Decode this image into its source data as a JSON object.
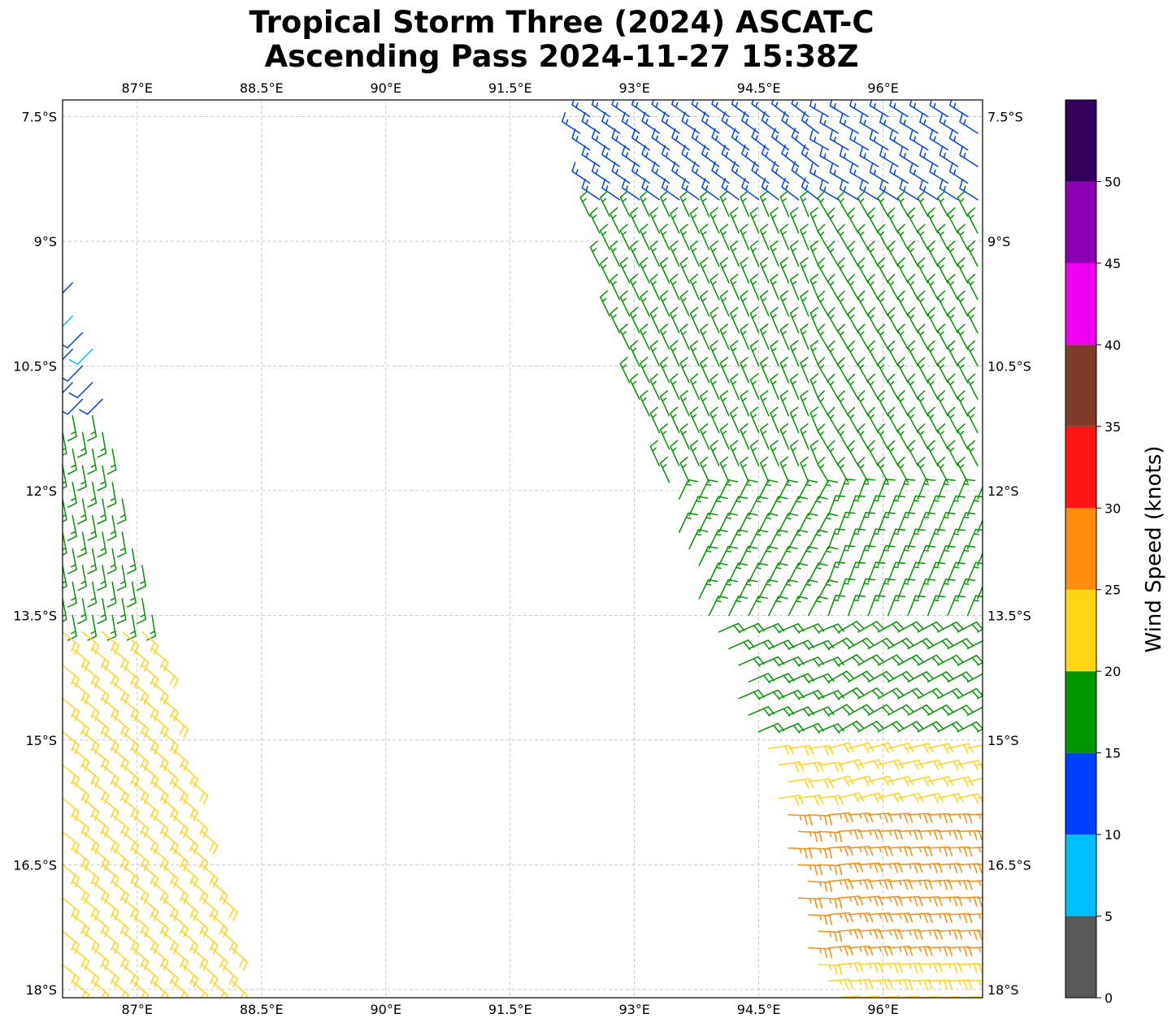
{
  "title": {
    "line1": "Tropical Storm Three (2024) ASCAT-C",
    "line2": "Ascending Pass 2024-11-27 15:38Z"
  },
  "map": {
    "lon_range": [
      86.1,
      97.2
    ],
    "lat_range": [
      -18.1,
      -7.3
    ],
    "gridlines": true,
    "lon_ticks": [
      {
        "value": 87.0,
        "label": "87°E"
      },
      {
        "value": 88.5,
        "label": "88.5°E"
      },
      {
        "value": 90.0,
        "label": "90°E"
      },
      {
        "value": 91.5,
        "label": "91.5°E"
      },
      {
        "value": 93.0,
        "label": "93°E"
      },
      {
        "value": 94.5,
        "label": "94.5°E"
      },
      {
        "value": 96.0,
        "label": "96°E"
      }
    ],
    "lat_ticks": [
      {
        "value": -7.5,
        "label": "7.5°S"
      },
      {
        "value": -9.0,
        "label": "9°S"
      },
      {
        "value": -10.5,
        "label": "10.5°S"
      },
      {
        "value": -12.0,
        "label": "12°S"
      },
      {
        "value": -13.5,
        "label": "13.5°S"
      },
      {
        "value": -15.0,
        "label": "15°S"
      },
      {
        "value": -16.5,
        "label": "16.5°S"
      },
      {
        "value": -18.0,
        "label": "18°S"
      }
    ]
  },
  "colorbar": {
    "label": "Wind Speed (knots)",
    "range": [
      0,
      55
    ],
    "bins": [
      {
        "from": 0,
        "to": 5,
        "color": "#595959"
      },
      {
        "from": 5,
        "to": 10,
        "color": "#00bfff"
      },
      {
        "from": 10,
        "to": 15,
        "color": "#0040ff"
      },
      {
        "from": 15,
        "to": 20,
        "color": "#009600"
      },
      {
        "from": 20,
        "to": 25,
        "color": "#ffd514"
      },
      {
        "from": 25,
        "to": 30,
        "color": "#ff8c0a"
      },
      {
        "from": 30,
        "to": 35,
        "color": "#ff1414"
      },
      {
        "from": 35,
        "to": 40,
        "color": "#7f3c28"
      },
      {
        "from": 40,
        "to": 45,
        "color": "#f000f0"
      },
      {
        "from": 45,
        "to": 50,
        "color": "#8c00b4"
      },
      {
        "from": 50,
        "to": 55,
        "color": "#32005a"
      }
    ],
    "ticks": [
      {
        "value": 0,
        "label": "0"
      },
      {
        "value": 5,
        "label": "5"
      },
      {
        "value": 10,
        "label": "10"
      },
      {
        "value": 15,
        "label": "15"
      },
      {
        "value": 20,
        "label": "20"
      },
      {
        "value": 25,
        "label": "25"
      },
      {
        "value": 30,
        "label": "30"
      },
      {
        "value": 35,
        "label": "35"
      },
      {
        "value": 40,
        "label": "40"
      },
      {
        "value": 45,
        "label": "45"
      },
      {
        "value": 50,
        "label": "50"
      }
    ]
  },
  "swaths": [
    {
      "name": "west-swath",
      "clip": [
        [
          86.1,
          -9.0
        ],
        [
          86.5,
          -10.3
        ],
        [
          86.7,
          -11.3
        ],
        [
          87.2,
          -13.5
        ],
        [
          87.5,
          -14.8
        ],
        [
          88.0,
          -16.8
        ],
        [
          88.3,
          -18.1
        ],
        [
          86.1,
          -18.1
        ]
      ],
      "wind_zones": [
        {
          "lat_max": -7.3,
          "lat_min": -10.9,
          "direction_deg": 230,
          "speed": 12,
          "speed_alt": 8,
          "color": "#0040ff"
        },
        {
          "lat_max": -10.9,
          "lat_min": -13.6,
          "direction_deg": 175,
          "speed": 17,
          "color": "#009600"
        },
        {
          "lat_max": -13.6,
          "lat_min": -18.1,
          "direction_deg": 135,
          "speed": 22,
          "color": "#ffd514"
        }
      ]
    },
    {
      "name": "east-swath",
      "clip": [
        [
          92.2,
          -7.3
        ],
        [
          97.2,
          -7.3
        ],
        [
          97.2,
          -18.1
        ],
        [
          95.2,
          -18.1
        ],
        [
          94.8,
          -16.0
        ],
        [
          94.5,
          -15.0
        ],
        [
          94.1,
          -14.2
        ],
        [
          93.7,
          -13.2
        ],
        [
          93.3,
          -11.8
        ],
        [
          93.0,
          -11.0
        ],
        [
          92.7,
          -10.0
        ],
        [
          92.5,
          -9.0
        ],
        [
          92.4,
          -8.3
        ]
      ],
      "wind_zones": [
        {
          "lat_max": -7.3,
          "lat_min": -8.5,
          "direction_deg": 300,
          "speed": 13,
          "color": "#0040ff"
        },
        {
          "lat_max": -8.5,
          "lat_min": -12.0,
          "direction_deg": 330,
          "speed": 17,
          "color": "#009600"
        },
        {
          "lat_max": -12.0,
          "lat_min": -13.6,
          "direction_deg": 20,
          "speed": 17,
          "color": "#009600"
        },
        {
          "lat_max": -13.6,
          "lat_min": -15.0,
          "direction_deg": 60,
          "speed": 18,
          "color": "#009600"
        },
        {
          "lat_max": -15.0,
          "lat_min": -15.8,
          "direction_deg": 75,
          "speed": 22,
          "color": "#ffd514"
        },
        {
          "lat_max": -15.8,
          "lat_min": -17.6,
          "direction_deg": 85,
          "speed": 27,
          "color": "#ff8c0a"
        },
        {
          "lat_max": -17.6,
          "lat_min": -18.1,
          "direction_deg": 85,
          "speed": 23,
          "color": "#ffd514"
        }
      ]
    }
  ]
}
